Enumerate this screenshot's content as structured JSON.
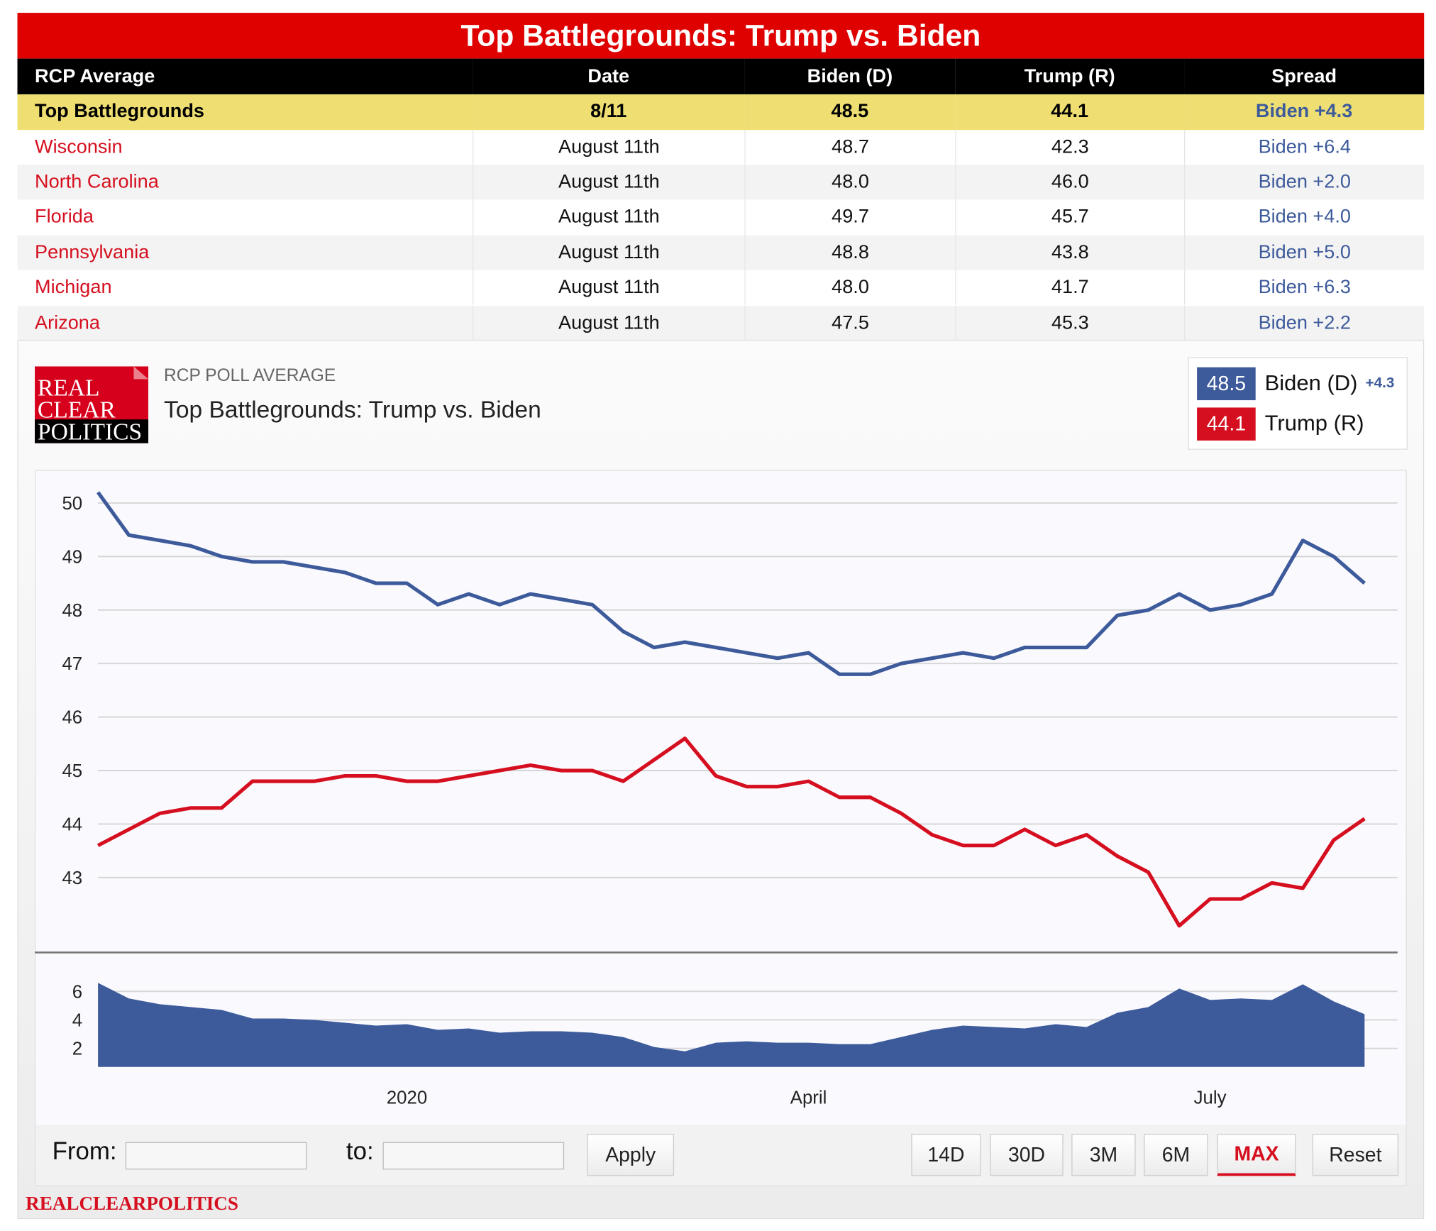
{
  "table": {
    "title": "Top Battlegrounds: Trump vs. Biden",
    "header": [
      "RCP Average",
      "Date",
      "Biden (D)",
      "Trump (R)",
      "Spread"
    ],
    "summary": [
      "Top Battlegrounds",
      "8/11",
      "48.5",
      "44.1",
      "Biden +4.3"
    ],
    "rows": [
      [
        "Wisconsin",
        "August 11th",
        "48.7",
        "42.3",
        "Biden +6.4"
      ],
      [
        "North Carolina",
        "August 11th",
        "48.0",
        "46.0",
        "Biden +2.0"
      ],
      [
        "Florida",
        "August 11th",
        "49.7",
        "45.7",
        "Biden +4.0"
      ],
      [
        "Pennsylvania",
        "August 11th",
        "48.8",
        "43.8",
        "Biden +5.0"
      ],
      [
        "Michigan",
        "August 11th",
        "48.0",
        "41.7",
        "Biden +6.3"
      ],
      [
        "Arizona",
        "August 11th",
        "47.5",
        "45.3",
        "Biden +2.2"
      ]
    ]
  },
  "chart_data": {
    "type": "line",
    "logo": [
      "REAL",
      "CLEAR",
      "POLITICS"
    ],
    "kicker": "RCP POLL AVERAGE",
    "title": "Top Battlegrounds: Trump vs. Biden",
    "legend_spread": "+4.3",
    "categories": [
      null,
      null,
      null,
      null,
      null,
      null,
      null,
      null,
      null,
      null,
      "2020",
      null,
      null,
      null,
      null,
      null,
      null,
      null,
      null,
      null,
      null,
      null,
      null,
      "April",
      null,
      null,
      null,
      null,
      null,
      null,
      null,
      null,
      null,
      null,
      null,
      null,
      "July",
      null,
      null,
      null,
      null,
      null
    ],
    "series": [
      {
        "name": "Biden (D)",
        "current": "48.5",
        "color": "#3d5a9b",
        "values": [
          50.2,
          49.4,
          49.3,
          49.2,
          49.0,
          48.9,
          48.9,
          48.8,
          48.7,
          48.5,
          48.5,
          48.1,
          48.3,
          48.1,
          48.3,
          48.2,
          48.1,
          47.6,
          47.3,
          47.4,
          47.3,
          47.2,
          47.1,
          47.2,
          46.8,
          46.8,
          47.0,
          47.1,
          47.2,
          47.1,
          47.3,
          47.3,
          47.3,
          47.9,
          48.0,
          48.3,
          48.0,
          48.1,
          48.3,
          49.3,
          49.0,
          48.5
        ]
      },
      {
        "name": "Trump (R)",
        "current": "44.1",
        "color": "#d50f1f",
        "values": [
          43.6,
          43.9,
          44.2,
          44.3,
          44.3,
          44.8,
          44.8,
          44.8,
          44.9,
          44.9,
          44.8,
          44.8,
          44.9,
          45.0,
          45.1,
          45.0,
          45.0,
          44.8,
          45.2,
          45.6,
          44.9,
          44.7,
          44.7,
          44.8,
          44.5,
          44.5,
          44.2,
          43.8,
          43.6,
          43.6,
          43.9,
          43.6,
          43.8,
          43.4,
          43.1,
          42.1,
          42.6,
          42.6,
          42.9,
          42.8,
          43.7,
          44.1
        ]
      }
    ],
    "ylim": [
      41.6,
      50.5
    ],
    "yticks": [
      43,
      44,
      45,
      46,
      47,
      48,
      49,
      50
    ],
    "grid": true,
    "spread": {
      "color": "#3d5a9b",
      "values": [
        6.6,
        5.5,
        5.1,
        4.9,
        4.7,
        4.1,
        4.1,
        4.0,
        3.8,
        3.6,
        3.7,
        3.3,
        3.4,
        3.1,
        3.2,
        3.2,
        3.1,
        2.8,
        2.1,
        1.8,
        2.4,
        2.5,
        2.4,
        2.4,
        2.3,
        2.3,
        2.8,
        3.3,
        3.6,
        3.5,
        3.4,
        3.7,
        3.5,
        4.5,
        4.9,
        6.2,
        5.4,
        5.5,
        5.4,
        6.5,
        5.3,
        4.4
      ],
      "ylim": [
        0.7,
        6.8
      ],
      "yticks": [
        2,
        4,
        6
      ]
    }
  },
  "controls": {
    "from_label": "From:",
    "to_label": "to:",
    "apply": "Apply",
    "ranges": [
      "14D",
      "30D",
      "3M",
      "6M",
      "MAX"
    ],
    "reset": "Reset"
  },
  "footer": "REALCLEARPOLITICS"
}
